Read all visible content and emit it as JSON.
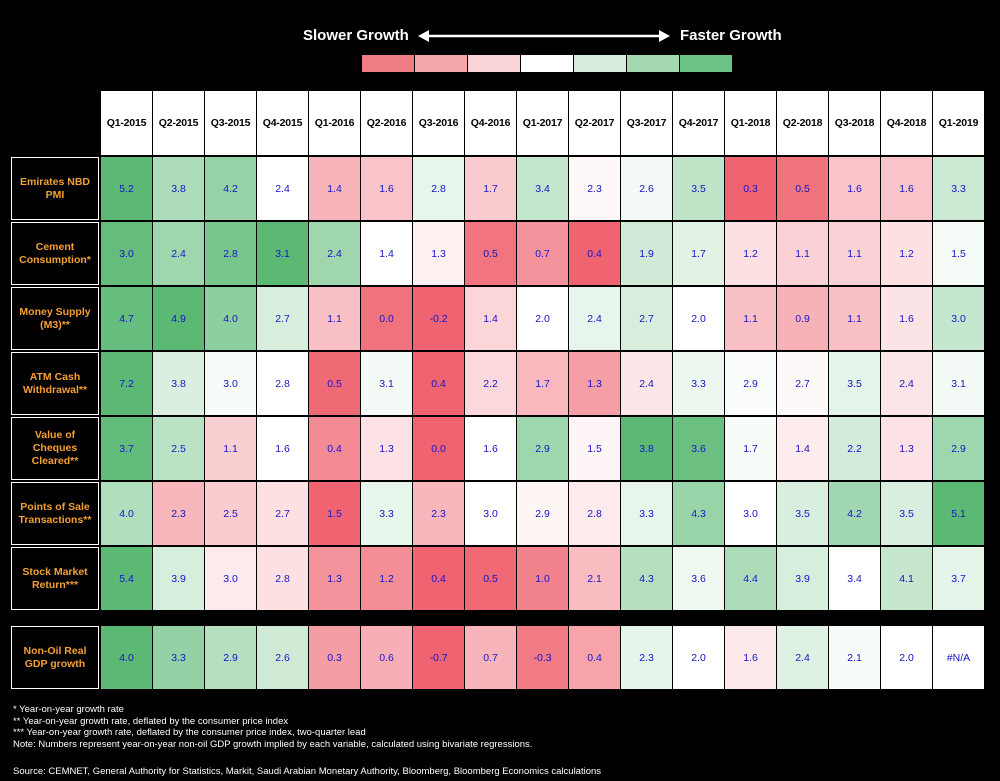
{
  "legend": {
    "slower": "Slower Growth",
    "faster": "Faster Growth",
    "scale_colors": [
      "#f07c84",
      "#f5a6ab",
      "#f9d3d6",
      "#ffffff",
      "#d5ecdb",
      "#a4d8b1",
      "#6cc184"
    ]
  },
  "chart_data": {
    "type": "heatmap",
    "title": "",
    "columns": [
      "Q1-2015",
      "Q2-2015",
      "Q3-2015",
      "Q4-2015",
      "Q1-2016",
      "Q2-2016",
      "Q3-2016",
      "Q4-2016",
      "Q1-2017",
      "Q2-2017",
      "Q3-2017",
      "Q4-2017",
      "Q1-2018",
      "Q2-2018",
      "Q3-2018",
      "Q4-2018",
      "Q1-2019"
    ],
    "rows": [
      {
        "label": "Emirates NBD PMI",
        "values": [
          "5.2",
          "3.8",
          "4.2",
          "2.4",
          "1.4",
          "1.6",
          "2.8",
          "1.7",
          "3.4",
          "2.3",
          "2.6",
          "3.5",
          "0.3",
          "0.5",
          "1.6",
          "1.6",
          "3.3"
        ]
      },
      {
        "label": "Cement Consumption*",
        "values": [
          "3.0",
          "2.4",
          "2.8",
          "3.1",
          "2.4",
          "1.4",
          "1.3",
          "0.5",
          "0.7",
          "0.4",
          "1.9",
          "1.7",
          "1.2",
          "1.1",
          "1.1",
          "1.2",
          "1.5"
        ]
      },
      {
        "label": "Money Supply (M3)**",
        "values": [
          "4.7",
          "4.9",
          "4.0",
          "2.7",
          "1.1",
          "0.0",
          "-0.2",
          "1.4",
          "2.0",
          "2.4",
          "2.7",
          "2.0",
          "1.1",
          "0.9",
          "1.1",
          "1.6",
          "3.0"
        ]
      },
      {
        "label": "ATM Cash Withdrawal**",
        "values": [
          "7.2",
          "3.8",
          "3.0",
          "2.8",
          "0.5",
          "3.1",
          "0.4",
          "2.2",
          "1.7",
          "1.3",
          "2.4",
          "3.3",
          "2.9",
          "2.7",
          "3.5",
          "2.4",
          "3.1"
        ]
      },
      {
        "label": "Value of Cheques Cleared**",
        "values": [
          "3.7",
          "2.5",
          "1.1",
          "1.6",
          "0.4",
          "1.3",
          "0.0",
          "1.6",
          "2.9",
          "1.5",
          "3.8",
          "3.6",
          "1.7",
          "1.4",
          "2.2",
          "1.3",
          "2.9"
        ]
      },
      {
        "label": "Points of Sale Transactions**",
        "values": [
          "4.0",
          "2.3",
          "2.5",
          "2.7",
          "1.5",
          "3.3",
          "2.3",
          "3.0",
          "2.9",
          "2.8",
          "3.3",
          "4.3",
          "3.0",
          "3.5",
          "4.2",
          "3.5",
          "5.1"
        ]
      },
      {
        "label": "Stock Market Return***",
        "values": [
          "5.4",
          "3.9",
          "3.0",
          "2.8",
          "1.3",
          "1.2",
          "0.4",
          "0.5",
          "1.0",
          "2.1",
          "4.3",
          "3.6",
          "4.4",
          "3.9",
          "3.4",
          "4.1",
          "3.7"
        ]
      },
      {
        "label": "Non-Oil Real GDP growth",
        "values": [
          "4.0",
          "3.3",
          "2.9",
          "2.6",
          "0.3",
          "0.6",
          "-0.7",
          "0.7",
          "-0.3",
          "0.4",
          "2.3",
          "2.0",
          "1.6",
          "2.4",
          "2.1",
          "2.0",
          "#N/A"
        ]
      }
    ]
  },
  "notes": [
    "* Year-on-year growth rate",
    "** Year-on-year growth rate, deflated by the consumer price index",
    "*** Year-on-year growth rate, deflated by the consumer price index, two-quarter lead",
    "Note: Numbers represent year-on-year non-oil GDP growth implied by each variable, calculated using bivariate regressions."
  ],
  "source": "Source: CEMNET, General Authority for Statistics, Markit, Saudi Arabian Monetary Authority, Bloomberg, Bloomberg Economics calculations"
}
